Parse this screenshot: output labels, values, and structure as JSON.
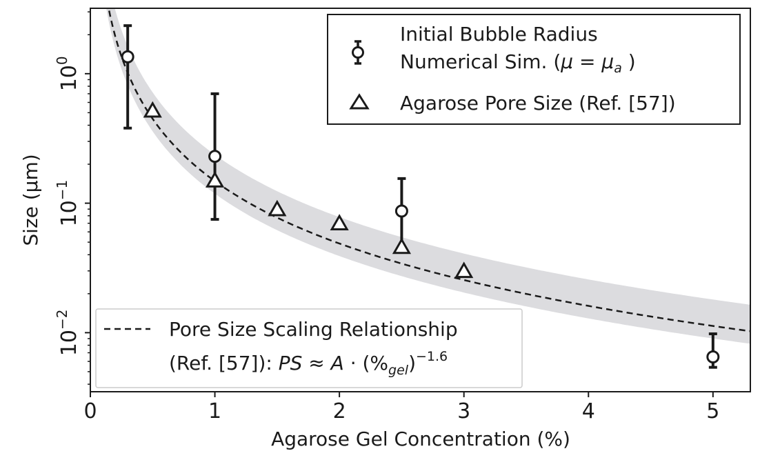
{
  "chart_data": {
    "type": "scatter",
    "xlabel": "Agarose Gel Concentration (%)",
    "ylabel": "Size (μm)",
    "xlim": [
      0,
      5.3
    ],
    "ylim": [
      0.0035,
      3.2
    ],
    "yscale": "log",
    "x_ticks": [
      "0",
      "1",
      "2",
      "3",
      "4",
      "5"
    ],
    "y_ticks": [
      {
        "value": 1,
        "base": "10",
        "exp": "0"
      },
      {
        "value": 0.1,
        "base": "10",
        "exp": "−1"
      },
      {
        "value": 0.01,
        "base": "10",
        "exp": "−2"
      }
    ],
    "series": [
      {
        "name": "Initial Bubble Radius Numerical Sim. (μ = μa)",
        "marker": "circle",
        "errorbars": true,
        "points": [
          {
            "x": 0.3,
            "y": 1.35,
            "ylow": 0.38,
            "yhigh": 2.35
          },
          {
            "x": 1.0,
            "y": 0.23,
            "ylow": 0.075,
            "yhigh": 0.7
          },
          {
            "x": 2.5,
            "y": 0.087,
            "ylow": 0.042,
            "yhigh": 0.155
          },
          {
            "x": 5.0,
            "y": 0.0065,
            "ylow": 0.0054,
            "yhigh": 0.0098
          }
        ]
      },
      {
        "name": "Agarose Pore Size (Ref. [57])",
        "marker": "triangle",
        "points": [
          {
            "x": 0.5,
            "y": 0.52
          },
          {
            "x": 1.0,
            "y": 0.15
          },
          {
            "x": 1.5,
            "y": 0.09
          },
          {
            "x": 2.0,
            "y": 0.07
          },
          {
            "x": 2.5,
            "y": 0.046
          },
          {
            "x": 3.0,
            "y": 0.03
          }
        ]
      },
      {
        "name": "Pore Size Scaling Relationship (Ref. [57]): PS ≈ A · (%gel)^−1.6",
        "line": "dashed",
        "model": {
          "A": 0.148,
          "exponent": -1.6
        },
        "band_factor": {
          "lower": 0.8,
          "upper": 1.6
        }
      }
    ],
    "legend_top": {
      "position": "top-right",
      "entry1_line1": "Initial Bubble Radius",
      "entry1_line2_prefix": "Numerical Sim. (",
      "entry1_mu": "μ",
      "entry1_eq": " = ",
      "entry1_mua": "μ",
      "entry1_sub": "a",
      "entry1_close": " )",
      "entry2": "Agarose Pore Size (Ref. [57])"
    },
    "legend_bottom": {
      "position": "bottom-left",
      "line1": "Pore Size Scaling Relationship",
      "line2_prefix": "(Ref. [57]):  ",
      "ps": "PS",
      "approx": " ≈ ",
      "a": "A",
      "dot": " · (%",
      "gel": "gel",
      "close": ")",
      "exp": "−1.6"
    }
  }
}
